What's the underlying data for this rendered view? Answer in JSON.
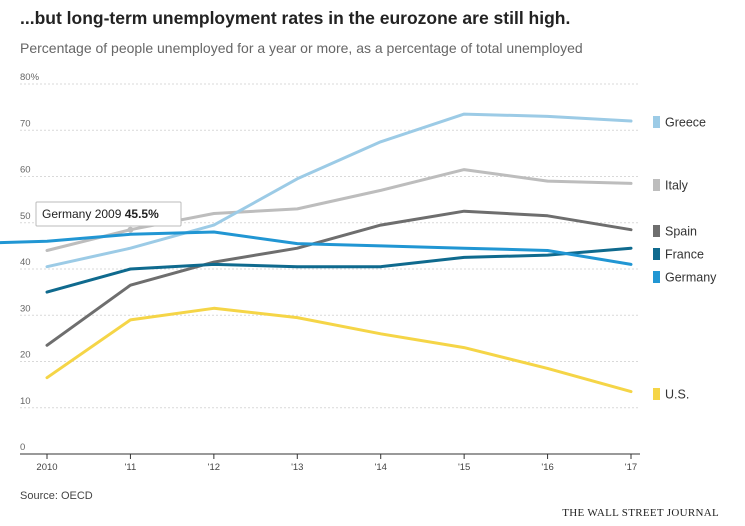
{
  "header": {
    "title": "...but long-term unemployment rates in the eurozone are still high.",
    "subtitle": "Percentage of people unemployed for a year or more, as a percentage of total unemployed"
  },
  "footer": {
    "source": "Source: OECD",
    "brand": "THE WALL STREET JOURNAL"
  },
  "tooltip": {
    "series": "Germany",
    "year": "2009",
    "value": "45.5%"
  },
  "chart_data": {
    "type": "line",
    "x": [
      2009,
      2010,
      2011,
      2012,
      2013,
      2014,
      2015,
      2016,
      2017
    ],
    "x_tick_values": [
      2010,
      2011,
      2012,
      2013,
      2014,
      2015,
      2016,
      2017
    ],
    "x_tick_labels": [
      "2010",
      "'11",
      "'12",
      "'13",
      "'14",
      "'15",
      "'16",
      "'17"
    ],
    "ylim": [
      0,
      80
    ],
    "y_ticks": [
      0,
      10,
      20,
      30,
      40,
      50,
      60,
      70,
      80
    ],
    "y_tick_labels": [
      "0",
      "10",
      "20",
      "30",
      "40",
      "50",
      "60",
      "70",
      "80%"
    ],
    "grid": "horizontal",
    "legend_position": "right",
    "series": [
      {
        "name": "Greece",
        "color": "#9ccbe6",
        "values": [
          null,
          40.5,
          44.5,
          49.5,
          59.5,
          67.5,
          73.5,
          73.0,
          72.0
        ]
      },
      {
        "name": "Italy",
        "color": "#bdbdbd",
        "values": [
          null,
          44.0,
          48.5,
          52.0,
          53.0,
          57.0,
          61.5,
          59.0,
          58.5
        ]
      },
      {
        "name": "Spain",
        "color": "#6e6e6e",
        "values": [
          null,
          23.5,
          36.5,
          41.5,
          44.5,
          49.5,
          52.5,
          51.5,
          48.5
        ]
      },
      {
        "name": "France",
        "color": "#0f6a8e",
        "values": [
          null,
          35.0,
          40.0,
          41.0,
          40.5,
          40.5,
          42.5,
          43.0,
          44.5
        ]
      },
      {
        "name": "Germany",
        "color": "#2196d3",
        "values": [
          45.5,
          46.0,
          47.5,
          48.0,
          45.5,
          45.0,
          44.5,
          44.0,
          41.0
        ]
      },
      {
        "name": "U.S.",
        "color": "#f5d547",
        "values": [
          null,
          16.5,
          29.0,
          31.5,
          29.5,
          26.0,
          23.0,
          18.5,
          13.5
        ]
      }
    ]
  }
}
